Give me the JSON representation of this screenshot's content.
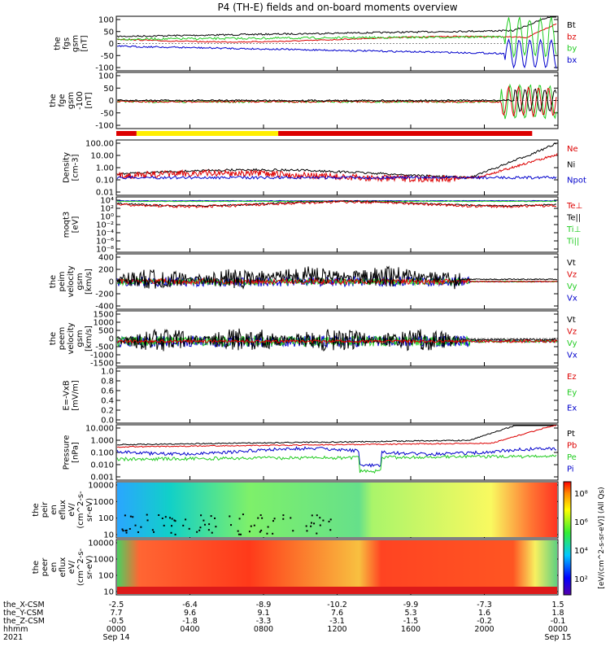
{
  "title": "P4 (TH-E) fields and on-board moments overview",
  "colors": {
    "black": "#000000",
    "red": "#dd0000",
    "green": "#22cc22",
    "blue": "#0000cc",
    "yellow": "#ffee00"
  },
  "chart_data": {
    "type": "line",
    "x_axis": {
      "ticks": [
        "0000",
        "0400",
        "0800",
        "1200",
        "1600",
        "2000",
        "0000"
      ],
      "tick_hours": [
        0,
        4,
        8,
        12,
        16,
        20,
        24
      ],
      "date_labels": {
        "start": "Sep 14",
        "end": "Sep 15",
        "year": "2021"
      },
      "range_hours": [
        0,
        24
      ]
    },
    "coords": {
      "rows": [
        {
          "label": "the_X-CSM",
          "values": [
            "-2.5",
            "-6.4",
            "-8.9",
            "-10.2",
            "-9.9",
            "-7.3",
            "1.5"
          ]
        },
        {
          "label": "the_Y-CSM",
          "values": [
            "7.7",
            "9.6",
            "9.1",
            "7.6",
            "5.3",
            "1.6",
            "1.8"
          ]
        },
        {
          "label": "the_Z-CSM",
          "values": [
            "-0.5",
            "-1.8",
            "-3.3",
            "-3.1",
            "-1.5",
            "-0.2",
            "-0.1"
          ]
        },
        {
          "label": "hhmm",
          "values": [
            "0000",
            "0400",
            "0800",
            "1200",
            "1600",
            "2000",
            "0000"
          ]
        }
      ]
    },
    "panels": [
      {
        "id": "fgs",
        "ylabel": [
          "the",
          "fgs",
          "gsm",
          "[nT]"
        ],
        "yticks": [
          "100",
          "50",
          "0",
          "-50",
          "-100"
        ],
        "ylim": [
          -100,
          100
        ],
        "legend": [
          {
            "text": "Bt",
            "color": "black"
          },
          {
            "text": "bz",
            "color": "red"
          },
          {
            "text": "by",
            "color": "green"
          },
          {
            "text": "bx",
            "color": "blue"
          }
        ]
      },
      {
        "id": "fge",
        "ylabel": [
          "the",
          "fge",
          "gsm",
          "-100",
          "[nT]"
        ],
        "yticks": [
          "100",
          "50",
          "0",
          "-50",
          "-100"
        ],
        "ylim": [
          -120,
          120
        ],
        "legend": []
      },
      {
        "id": "density",
        "ylabel": [
          "Density",
          "[cm-3]"
        ],
        "yticks": [
          "100.00",
          "10.00",
          "1.00",
          "0.10",
          "0.01"
        ],
        "ylim": [
          0.01,
          100
        ],
        "scale": "log",
        "legend": [
          {
            "text": "Ne",
            "color": "red"
          },
          {
            "text": "Ni",
            "color": "black"
          },
          {
            "text": "Npot",
            "color": "blue"
          }
        ]
      },
      {
        "id": "temp",
        "ylabel": [
          "moqt3",
          "[eV]"
        ],
        "yticks": [
          "10⁴",
          "10²",
          "10⁰",
          "10⁻²",
          "10⁻⁴",
          "10⁻⁶",
          "10⁻⁸"
        ],
        "scale": "log",
        "legend": [
          {
            "text": "Te⊥",
            "color": "red"
          },
          {
            "text": "Te||",
            "color": "black"
          },
          {
            "text": "Ti⊥",
            "color": "green"
          },
          {
            "text": "Ti||",
            "color": "green"
          }
        ]
      },
      {
        "id": "peim",
        "ylabel": [
          "the",
          "peim",
          "velocity",
          "gsm",
          "[km/s]"
        ],
        "yticks": [
          "400",
          "200",
          "0",
          "-200",
          "-400"
        ],
        "ylim": [
          -400,
          400
        ],
        "legend": [
          {
            "text": "Vt",
            "color": "black"
          },
          {
            "text": "Vz",
            "color": "red"
          },
          {
            "text": "Vy",
            "color": "green"
          },
          {
            "text": "Vx",
            "color": "blue"
          }
        ]
      },
      {
        "id": "peem",
        "ylabel": [
          "the",
          "peem",
          "velocity",
          "gsm",
          "[km/s]"
        ],
        "yticks": [
          "1500",
          "1000",
          "500",
          "0",
          "-500",
          "-1000",
          "-1500"
        ],
        "ylim": [
          -1500,
          1500
        ],
        "legend": [
          {
            "text": "Vt",
            "color": "black"
          },
          {
            "text": "Vz",
            "color": "red"
          },
          {
            "text": "Vy",
            "color": "green"
          },
          {
            "text": "Vx",
            "color": "blue"
          }
        ]
      },
      {
        "id": "efield",
        "ylabel": [
          "E=-VxB",
          "[mV/m]"
        ],
        "yticks": [
          "1.0",
          "0.8",
          "0.6",
          "0.4",
          "0.2",
          "0.0"
        ],
        "ylim": [
          0,
          1
        ],
        "legend": [
          {
            "text": "Ez",
            "color": "red"
          },
          {
            "text": "Ey",
            "color": "green"
          },
          {
            "text": "Ex",
            "color": "blue"
          }
        ]
      },
      {
        "id": "pressure",
        "ylabel": [
          "Pressure",
          "[nPa]"
        ],
        "yticks": [
          "10.000",
          "1.000",
          "0.100",
          "0.010",
          "0.001"
        ],
        "ylim": [
          0.001,
          10
        ],
        "scale": "log",
        "legend": [
          {
            "text": "Pt",
            "color": "black"
          },
          {
            "text": "Pb",
            "color": "red"
          },
          {
            "text": "Pe",
            "color": "green"
          },
          {
            "text": "Pi",
            "color": "blue"
          }
        ]
      },
      {
        "id": "peir",
        "type": "heatmap",
        "ylabel": [
          "the",
          "peir",
          "en",
          "eflux",
          "eV/",
          "(cm^2-s-",
          "sr-eV)"
        ],
        "yticks": [
          "10000",
          "1000",
          "100",
          "10"
        ],
        "scale": "log"
      },
      {
        "id": "peer",
        "type": "heatmap",
        "ylabel": [
          "the",
          "peer",
          "en",
          "eflux",
          "eV/",
          "(cm^2-s-",
          "sr-eV)"
        ],
        "yticks": [
          "10000",
          "1000",
          "100",
          "10"
        ],
        "scale": "log"
      }
    ],
    "colorbar": {
      "ticks": [
        "10⁸",
        "10⁶",
        "10⁴",
        "10²"
      ],
      "label": "[eV/(cm^2-s-sr-eV)] (All Qs)"
    }
  }
}
